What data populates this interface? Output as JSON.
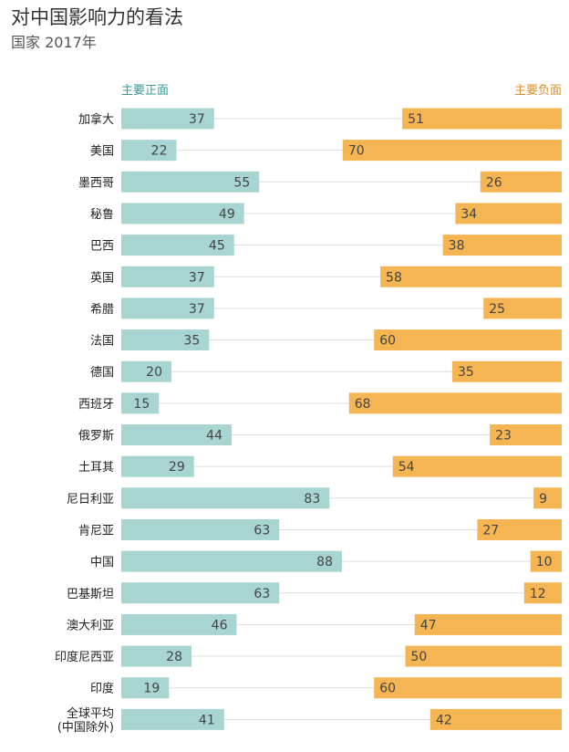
{
  "chart_data": {
    "type": "bar",
    "title": "对中国影响力的看法",
    "subtitle": "国家 2017年",
    "legend": {
      "positive": "主要正面",
      "negative": "主要负面"
    },
    "colors": {
      "positive": "#a8d5d1",
      "negative": "#f5b553"
    },
    "categories": [
      [
        "加拿大"
      ],
      [
        "美国"
      ],
      [
        "墨西哥"
      ],
      [
        "秘鲁"
      ],
      [
        "巴西"
      ],
      [
        "英国"
      ],
      [
        "希腊"
      ],
      [
        "法国"
      ],
      [
        "德国"
      ],
      [
        "西班牙"
      ],
      [
        "俄罗斯"
      ],
      [
        "土耳其"
      ],
      [
        "尼日利亚"
      ],
      [
        "肯尼亚"
      ],
      [
        "中国"
      ],
      [
        "巴基斯坦"
      ],
      [
        "澳大利亚"
      ],
      [
        "印度尼西亚"
      ],
      [
        "印度"
      ],
      [
        "全球平均",
        "(中国除外)"
      ]
    ],
    "series": [
      {
        "name": "主要正面",
        "values": [
          37,
          22,
          55,
          49,
          45,
          37,
          37,
          35,
          20,
          15,
          44,
          29,
          83,
          63,
          88,
          63,
          46,
          28,
          19,
          41
        ]
      },
      {
        "name": "主要负面",
        "values": [
          51,
          70,
          26,
          34,
          38,
          58,
          25,
          60,
          35,
          68,
          23,
          54,
          9,
          27,
          10,
          12,
          47,
          50,
          60,
          42
        ]
      }
    ],
    "xlim": [
      0,
      100
    ]
  }
}
